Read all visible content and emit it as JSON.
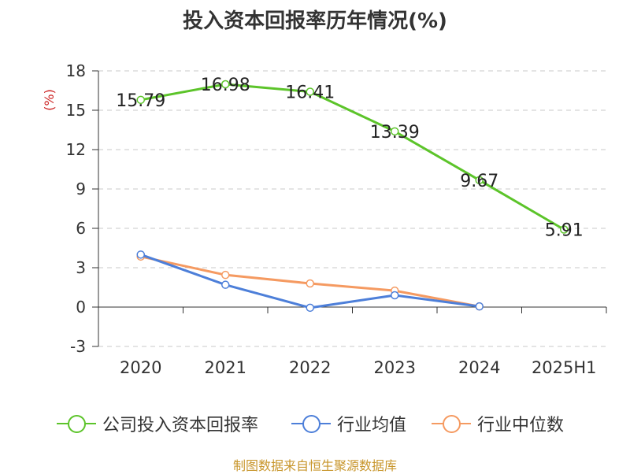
{
  "chart_data": {
    "type": "line",
    "title": "投入资本回报率历年情况(%)",
    "ylabel": "(%)",
    "categories": [
      "2020",
      "2021",
      "2022",
      "2023",
      "2024",
      "2025H1"
    ],
    "ylim": [
      -3,
      18
    ],
    "yticks": [
      -3,
      0,
      3,
      6,
      9,
      12,
      15,
      18
    ],
    "grid": "horizontal-dashed",
    "legend_position": "bottom",
    "series": [
      {
        "name": "公司投入资本回报率",
        "color": "#5cc42a",
        "values": [
          15.79,
          16.98,
          16.41,
          13.39,
          9.67,
          5.91
        ],
        "labels": [
          "15.79",
          "16.98",
          "16.41",
          "13.39",
          "9.67",
          "5.91"
        ]
      },
      {
        "name": "行业均值",
        "color": "#4d7fd9",
        "values": [
          4.0,
          1.7,
          -0.05,
          0.9,
          0.05,
          null
        ]
      },
      {
        "name": "行业中位数",
        "color": "#f59a61",
        "values": [
          3.85,
          2.45,
          1.8,
          1.25,
          0.05,
          null
        ]
      }
    ]
  },
  "source": "制图数据来自恒生聚源数据库"
}
